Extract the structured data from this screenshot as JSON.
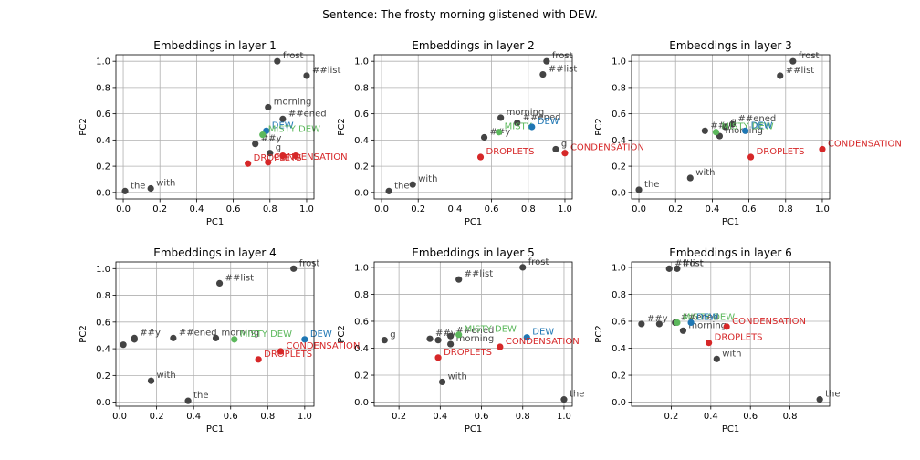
{
  "figure": {
    "suptitle": "Sentence: The frosty morning glistened with DEW."
  },
  "colors": {
    "token": "#444444",
    "misty": "#5cb85c",
    "dew": "#1f77b4",
    "droplets": "#d62728"
  },
  "chart_data": [
    {
      "type": "scatter",
      "title": "Embeddings in layer 1",
      "xlabel": "PC1",
      "ylabel": "PC2",
      "xlim": [
        -0.04,
        1.04
      ],
      "ylim": [
        -0.05,
        1.05
      ],
      "xticks": [
        0.0,
        0.2,
        0.4,
        0.6,
        0.8,
        1.0
      ],
      "yticks": [
        0.0,
        0.2,
        0.4,
        0.6,
        0.8,
        1.0
      ],
      "grid": true,
      "points": [
        {
          "label": "the",
          "x": 0.01,
          "y": 0.01,
          "group": "token"
        },
        {
          "label": "with",
          "x": 0.15,
          "y": 0.03,
          "group": "token"
        },
        {
          "label": "frost",
          "x": 0.84,
          "y": 1.0,
          "group": "token"
        },
        {
          "label": "##list",
          "x": 1.0,
          "y": 0.89,
          "group": "token"
        },
        {
          "label": "morning",
          "x": 0.79,
          "y": 0.65,
          "group": "token"
        },
        {
          "label": "##ened",
          "x": 0.87,
          "y": 0.56,
          "group": "token"
        },
        {
          "label": "##y",
          "x": 0.72,
          "y": 0.37,
          "group": "token"
        },
        {
          "label": "g",
          "x": 0.8,
          "y": 0.3,
          "group": "token"
        },
        {
          "label": "DEW",
          "x": 0.78,
          "y": 0.47,
          "group": "dew"
        },
        {
          "label": "MISTY DEW",
          "x": 0.76,
          "y": 0.44,
          "group": "misty"
        },
        {
          "label": "DROPLETS",
          "x": 0.68,
          "y": 0.22,
          "group": "droplets"
        },
        {
          "label": "CONDENSATION",
          "x": 0.79,
          "y": 0.23,
          "group": "droplets"
        },
        {
          "label": "",
          "x": 0.87,
          "y": 0.28,
          "group": "droplets"
        },
        {
          "label": "",
          "x": 0.94,
          "y": 0.28,
          "group": "droplets"
        }
      ]
    },
    {
      "type": "scatter",
      "title": "Embeddings in layer 2",
      "xlabel": "PC1",
      "ylabel": "PC2",
      "xlim": [
        -0.04,
        1.04
      ],
      "ylim": [
        -0.05,
        1.05
      ],
      "xticks": [
        0.0,
        0.2,
        0.4,
        0.6,
        0.8,
        1.0
      ],
      "yticks": [
        0.0,
        0.2,
        0.4,
        0.6,
        0.8,
        1.0
      ],
      "grid": true,
      "points": [
        {
          "label": "the",
          "x": 0.04,
          "y": 0.01,
          "group": "token"
        },
        {
          "label": "with",
          "x": 0.17,
          "y": 0.06,
          "group": "token"
        },
        {
          "label": "frost",
          "x": 0.9,
          "y": 1.0,
          "group": "token"
        },
        {
          "label": "##list",
          "x": 0.88,
          "y": 0.9,
          "group": "token"
        },
        {
          "label": "morning",
          "x": 0.65,
          "y": 0.57,
          "group": "token"
        },
        {
          "label": "##ened",
          "x": 0.74,
          "y": 0.53,
          "group": "token"
        },
        {
          "label": "##y",
          "x": 0.56,
          "y": 0.42,
          "group": "token"
        },
        {
          "label": "g",
          "x": 0.95,
          "y": 0.33,
          "group": "token"
        },
        {
          "label": "MISTY",
          "x": 0.64,
          "y": 0.46,
          "group": "misty"
        },
        {
          "label": "DEW",
          "x": 0.82,
          "y": 0.5,
          "group": "dew"
        },
        {
          "label": "DROPLETS",
          "x": 0.54,
          "y": 0.27,
          "group": "droplets"
        },
        {
          "label": "CONDENSATION",
          "x": 1.0,
          "y": 0.3,
          "group": "droplets"
        }
      ]
    },
    {
      "type": "scatter",
      "title": "Embeddings in layer 3",
      "xlabel": "PC1",
      "ylabel": "PC2",
      "xlim": [
        -0.04,
        1.04
      ],
      "ylim": [
        -0.05,
        1.05
      ],
      "xticks": [
        0.0,
        0.2,
        0.4,
        0.6,
        0.8,
        1.0
      ],
      "yticks": [
        0.0,
        0.2,
        0.4,
        0.6,
        0.8,
        1.0
      ],
      "grid": true,
      "points": [
        {
          "label": "the",
          "x": 0.0,
          "y": 0.02,
          "group": "token"
        },
        {
          "label": "with",
          "x": 0.28,
          "y": 0.11,
          "group": "token"
        },
        {
          "label": "frost",
          "x": 0.84,
          "y": 1.0,
          "group": "token"
        },
        {
          "label": "##list",
          "x": 0.77,
          "y": 0.89,
          "group": "token"
        },
        {
          "label": "##ened",
          "x": 0.51,
          "y": 0.52,
          "group": "token"
        },
        {
          "label": "##y",
          "x": 0.36,
          "y": 0.47,
          "group": "token"
        },
        {
          "label": "morning",
          "x": 0.44,
          "y": 0.43,
          "group": "token"
        },
        {
          "label": "g",
          "x": 0.47,
          "y": 0.5,
          "group": "token"
        },
        {
          "label": "MISTY DEW",
          "x": 0.42,
          "y": 0.46,
          "group": "misty"
        },
        {
          "label": "DEW",
          "x": 0.58,
          "y": 0.47,
          "group": "dew"
        },
        {
          "label": "DROPLETS",
          "x": 0.61,
          "y": 0.27,
          "group": "droplets"
        },
        {
          "label": "CONDENSATION",
          "x": 1.0,
          "y": 0.33,
          "group": "droplets"
        }
      ]
    },
    {
      "type": "scatter",
      "title": "Embeddings in layer 4",
      "xlabel": "PC1",
      "ylabel": "PC2",
      "xlim": [
        -0.02,
        1.05
      ],
      "ylim": [
        -0.03,
        1.05
      ],
      "xticks": [
        0.0,
        0.2,
        0.4,
        0.6,
        0.8,
        1.0
      ],
      "yticks": [
        0.0,
        0.2,
        0.4,
        0.6,
        0.8,
        1.0
      ],
      "grid": true,
      "points": [
        {
          "label": "the",
          "x": 0.37,
          "y": 0.01,
          "group": "token"
        },
        {
          "label": "with",
          "x": 0.17,
          "y": 0.16,
          "group": "token"
        },
        {
          "label": "frost",
          "x": 0.94,
          "y": 1.0,
          "group": "token"
        },
        {
          "label": "##list",
          "x": 0.54,
          "y": 0.89,
          "group": "token"
        },
        {
          "label": "##y",
          "x": 0.08,
          "y": 0.48,
          "group": "token"
        },
        {
          "label": "",
          "x": 0.02,
          "y": 0.43,
          "group": "token"
        },
        {
          "label": "",
          "x": 0.08,
          "y": 0.47,
          "group": "token"
        },
        {
          "label": "##ened",
          "x": 0.29,
          "y": 0.48,
          "group": "token"
        },
        {
          "label": "morning",
          "x": 0.52,
          "y": 0.48,
          "group": "token"
        },
        {
          "label": "MISTY DEW",
          "x": 0.62,
          "y": 0.47,
          "group": "misty"
        },
        {
          "label": "DEW",
          "x": 1.0,
          "y": 0.47,
          "group": "dew"
        },
        {
          "label": "CONDENSATION",
          "x": 0.87,
          "y": 0.38,
          "group": "droplets"
        },
        {
          "label": "DROPLETS",
          "x": 0.75,
          "y": 0.32,
          "group": "droplets"
        }
      ]
    },
    {
      "type": "scatter",
      "title": "Embeddings in layer 5",
      "xlabel": "PC1",
      "ylabel": "PC2",
      "xlim": [
        0.08,
        1.04
      ],
      "ylim": [
        -0.03,
        1.04
      ],
      "xticks": [
        0.2,
        0.4,
        0.6,
        0.8,
        1.0
      ],
      "yticks": [
        0.0,
        0.2,
        0.4,
        0.6,
        0.8,
        1.0
      ],
      "grid": true,
      "points": [
        {
          "label": "the",
          "x": 1.0,
          "y": 0.02,
          "group": "token"
        },
        {
          "label": "with",
          "x": 0.41,
          "y": 0.15,
          "group": "token"
        },
        {
          "label": "frost",
          "x": 0.8,
          "y": 1.0,
          "group": "token"
        },
        {
          "label": "##list",
          "x": 0.49,
          "y": 0.91,
          "group": "token"
        },
        {
          "label": "g",
          "x": 0.13,
          "y": 0.46,
          "group": "token"
        },
        {
          "label": "##y",
          "x": 0.35,
          "y": 0.47,
          "group": "token"
        },
        {
          "label": "",
          "x": 0.39,
          "y": 0.46,
          "group": "token"
        },
        {
          "label": "morning",
          "x": 0.45,
          "y": 0.43,
          "group": "token"
        },
        {
          "label": "##ened",
          "x": 0.45,
          "y": 0.49,
          "group": "token"
        },
        {
          "label": "MISTY DEW",
          "x": 0.49,
          "y": 0.5,
          "group": "misty"
        },
        {
          "label": "DEW",
          "x": 0.82,
          "y": 0.48,
          "group": "dew"
        },
        {
          "label": "DROPLETS",
          "x": 0.39,
          "y": 0.33,
          "group": "droplets"
        },
        {
          "label": "CONDENSATION",
          "x": 0.69,
          "y": 0.41,
          "group": "droplets"
        }
      ]
    },
    {
      "type": "scatter",
      "title": "Embeddings in layer 6",
      "xlabel": "PC1",
      "ylabel": "PC2",
      "xlim": [
        0.0,
        1.0
      ],
      "ylim": [
        -0.03,
        1.04
      ],
      "xticks": [
        0.2,
        0.4,
        0.6,
        0.8
      ],
      "yticks": [
        0.0,
        0.2,
        0.4,
        0.6,
        0.8,
        1.0
      ],
      "grid": true,
      "points": [
        {
          "label": "the",
          "x": 0.95,
          "y": 0.02,
          "group": "token"
        },
        {
          "label": "with",
          "x": 0.43,
          "y": 0.32,
          "group": "token"
        },
        {
          "label": "frost",
          "x": 0.23,
          "y": 0.99,
          "group": "token"
        },
        {
          "label": "##list",
          "x": 0.19,
          "y": 0.99,
          "group": "token"
        },
        {
          "label": "##y",
          "x": 0.05,
          "y": 0.58,
          "group": "token"
        },
        {
          "label": "",
          "x": 0.14,
          "y": 0.58,
          "group": "token"
        },
        {
          "label": "##ened",
          "x": 0.22,
          "y": 0.59,
          "group": "token"
        },
        {
          "label": "morning",
          "x": 0.26,
          "y": 0.53,
          "group": "token"
        },
        {
          "label": "MISTY DEW",
          "x": 0.23,
          "y": 0.59,
          "group": "misty"
        },
        {
          "label": "DEW",
          "x": 0.3,
          "y": 0.59,
          "group": "dew"
        },
        {
          "label": "CONDENSATION",
          "x": 0.48,
          "y": 0.56,
          "group": "droplets"
        },
        {
          "label": "DROPLETS",
          "x": 0.39,
          "y": 0.44,
          "group": "droplets"
        }
      ]
    }
  ]
}
